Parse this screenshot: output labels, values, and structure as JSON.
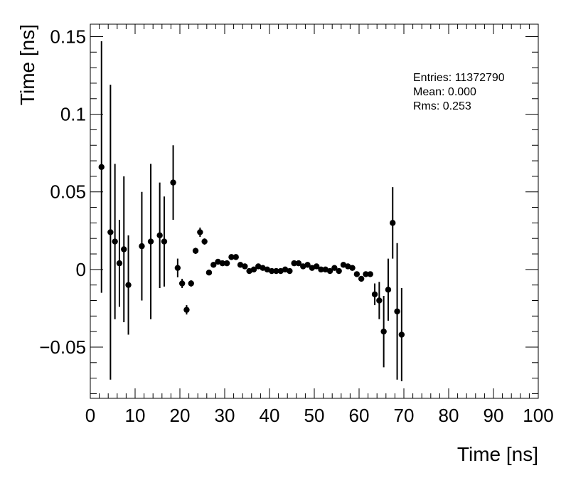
{
  "chart_data": {
    "type": "scatter",
    "xlabel": "Time [ns]",
    "ylabel": "Time [ns]",
    "xlim": [
      0,
      100
    ],
    "ylim": [
      -0.083,
      0.158
    ],
    "x_ticks": [
      0,
      10,
      20,
      30,
      40,
      50,
      60,
      70,
      80,
      90,
      100
    ],
    "x_tick_labels": [
      "0",
      "10",
      "20",
      "30",
      "40",
      "50",
      "60",
      "70",
      "80",
      "90",
      "100"
    ],
    "y_ticks": [
      -0.05,
      0,
      0.05,
      0.1,
      0.15
    ],
    "y_tick_labels": [
      "−0.05",
      "0",
      "0.05",
      "0.1",
      "0.15"
    ],
    "grid": false,
    "stats": {
      "entries": "Entries: 11372790",
      "mean": "Mean: 0.000",
      "rms": "Rms: 0.253"
    },
    "points": [
      {
        "x": 2.5,
        "y": 0.066,
        "err": 0.081
      },
      {
        "x": 4.5,
        "y": 0.024,
        "err": 0.095
      },
      {
        "x": 5.5,
        "y": 0.018,
        "err": 0.05
      },
      {
        "x": 6.5,
        "y": 0.004,
        "err": 0.028
      },
      {
        "x": 7.5,
        "y": 0.013,
        "err": 0.047
      },
      {
        "x": 8.5,
        "y": -0.01,
        "err": 0.032
      },
      {
        "x": 11.5,
        "y": 0.015,
        "err": 0.035
      },
      {
        "x": 13.5,
        "y": 0.018,
        "err": 0.05
      },
      {
        "x": 15.5,
        "y": 0.022,
        "err": 0.034
      },
      {
        "x": 16.5,
        "y": 0.018,
        "err": 0.029
      },
      {
        "x": 18.5,
        "y": 0.056,
        "err": 0.024
      },
      {
        "x": 19.5,
        "y": 0.001,
        "err": 0.006
      },
      {
        "x": 20.5,
        "y": -0.009,
        "err": 0.003
      },
      {
        "x": 21.5,
        "y": -0.026,
        "err": 0.003
      },
      {
        "x": 22.5,
        "y": -0.009,
        "err": 0.002
      },
      {
        "x": 23.5,
        "y": 0.012,
        "err": 0.002
      },
      {
        "x": 24.5,
        "y": 0.024,
        "err": 0.003
      },
      {
        "x": 25.5,
        "y": 0.018,
        "err": 0.002
      },
      {
        "x": 26.5,
        "y": -0.002,
        "err": 0.001
      },
      {
        "x": 27.5,
        "y": 0.003,
        "err": 0.001
      },
      {
        "x": 28.5,
        "y": 0.005,
        "err": 0.001
      },
      {
        "x": 29.5,
        "y": 0.004,
        "err": 0.001
      },
      {
        "x": 30.5,
        "y": 0.004,
        "err": 0.001
      },
      {
        "x": 31.5,
        "y": 0.008,
        "err": 0.001
      },
      {
        "x": 32.5,
        "y": 0.008,
        "err": 0.001
      },
      {
        "x": 33.5,
        "y": 0.003,
        "err": 0.001
      },
      {
        "x": 34.5,
        "y": 0.002,
        "err": 0.001
      },
      {
        "x": 35.5,
        "y": -0.001,
        "err": 0.001
      },
      {
        "x": 36.5,
        "y": 0.0,
        "err": 0.001
      },
      {
        "x": 37.5,
        "y": 0.002,
        "err": 0.001
      },
      {
        "x": 38.5,
        "y": 0.001,
        "err": 0.001
      },
      {
        "x": 39.5,
        "y": 0.0,
        "err": 0.001
      },
      {
        "x": 40.5,
        "y": -0.001,
        "err": 0.001
      },
      {
        "x": 41.5,
        "y": -0.001,
        "err": 0.001
      },
      {
        "x": 42.5,
        "y": -0.001,
        "err": 0.001
      },
      {
        "x": 43.5,
        "y": 0.0,
        "err": 0.001
      },
      {
        "x": 44.5,
        "y": -0.001,
        "err": 0.001
      },
      {
        "x": 45.5,
        "y": 0.004,
        "err": 0.001
      },
      {
        "x": 46.5,
        "y": 0.004,
        "err": 0.001
      },
      {
        "x": 47.5,
        "y": 0.002,
        "err": 0.001
      },
      {
        "x": 48.5,
        "y": 0.003,
        "err": 0.001
      },
      {
        "x": 49.5,
        "y": 0.001,
        "err": 0.001
      },
      {
        "x": 50.5,
        "y": 0.002,
        "err": 0.001
      },
      {
        "x": 51.5,
        "y": 0.0,
        "err": 0.001
      },
      {
        "x": 52.5,
        "y": 0.0,
        "err": 0.001
      },
      {
        "x": 53.5,
        "y": -0.001,
        "err": 0.001
      },
      {
        "x": 54.5,
        "y": 0.001,
        "err": 0.001
      },
      {
        "x": 55.5,
        "y": -0.001,
        "err": 0.001
      },
      {
        "x": 56.5,
        "y": 0.003,
        "err": 0.001
      },
      {
        "x": 57.5,
        "y": 0.002,
        "err": 0.001
      },
      {
        "x": 58.5,
        "y": 0.001,
        "err": 0.001
      },
      {
        "x": 59.5,
        "y": -0.003,
        "err": 0.001
      },
      {
        "x": 60.5,
        "y": -0.006,
        "err": 0.001
      },
      {
        "x": 61.5,
        "y": -0.003,
        "err": 0.001
      },
      {
        "x": 62.5,
        "y": -0.003,
        "err": 0.001
      },
      {
        "x": 63.5,
        "y": -0.016,
        "err": 0.007
      },
      {
        "x": 64.5,
        "y": -0.02,
        "err": 0.012
      },
      {
        "x": 65.5,
        "y": -0.04,
        "err": 0.023
      },
      {
        "x": 66.5,
        "y": -0.013,
        "err": 0.02
      },
      {
        "x": 67.5,
        "y": 0.03,
        "err": 0.023
      },
      {
        "x": 68.5,
        "y": -0.027,
        "err": 0.044
      },
      {
        "x": 69.5,
        "y": -0.042,
        "err": 0.03
      }
    ]
  }
}
